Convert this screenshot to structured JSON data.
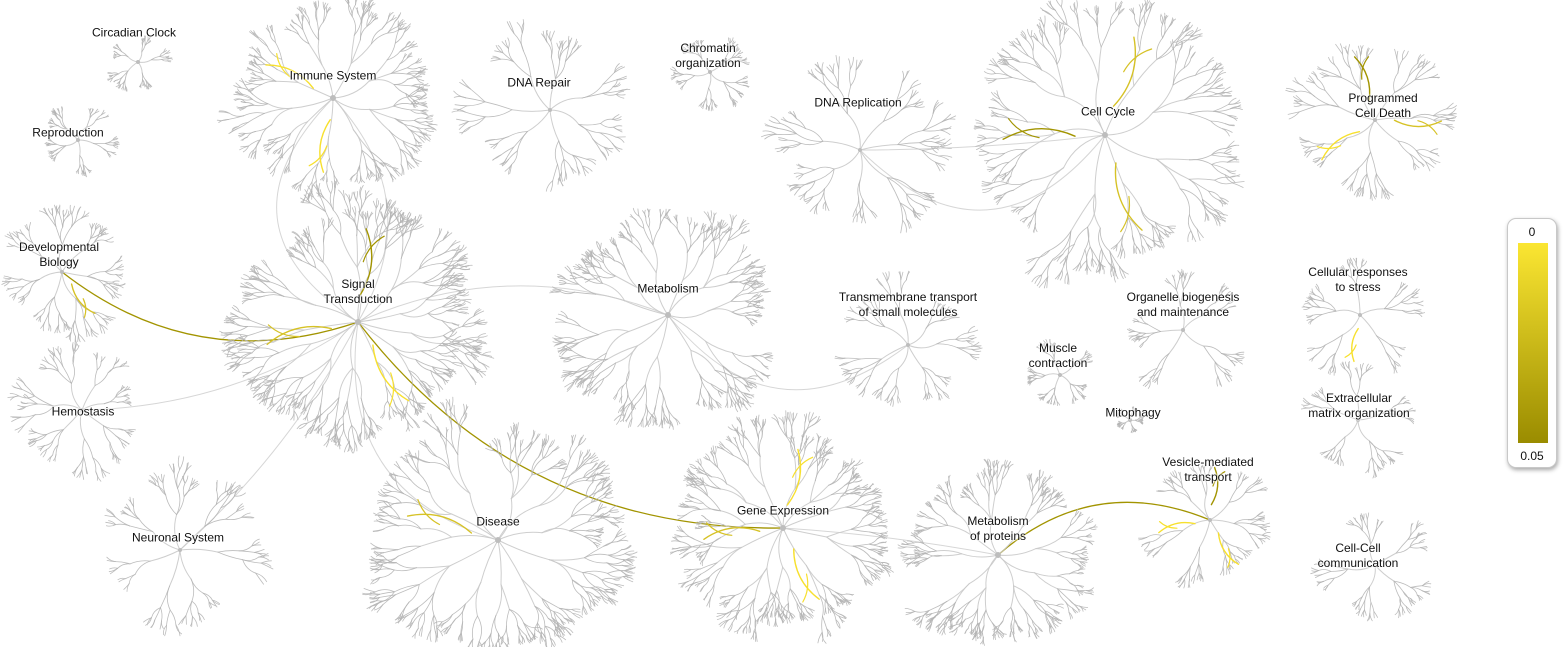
{
  "colors": {
    "tree": "#c9c9c9",
    "tree_dark": "#b5b5b5",
    "hit_high": "#f7e02e",
    "hit_mid": "#d6c226",
    "hit_low": "#a29400",
    "legend_top": "#fbe632",
    "legend_bottom": "#9a8c00"
  },
  "pathways": [
    {
      "id": "circadian-clock",
      "label": "Circadian Clock",
      "size": 1,
      "hits": []
    },
    {
      "id": "reproduction",
      "label": "Reproduction",
      "size": 1,
      "hits": []
    },
    {
      "id": "immune-system",
      "label": "Immune System",
      "size": 3,
      "hits": [
        "high",
        "high"
      ]
    },
    {
      "id": "developmental-biology",
      "label": "Developmental\nBiology",
      "size": 2,
      "hits": [
        "mid"
      ]
    },
    {
      "id": "signal-transduction",
      "label": "Signal\nTransduction",
      "size": 5,
      "hits": [
        "high",
        "mid",
        "low"
      ]
    },
    {
      "id": "hemostasis",
      "label": "Hemostasis",
      "size": 2,
      "hits": []
    },
    {
      "id": "neuronal-system",
      "label": "Neuronal System",
      "size": 2,
      "hits": []
    },
    {
      "id": "dna-repair",
      "label": "DNA Repair",
      "size": 2,
      "hits": []
    },
    {
      "id": "chromatin-organization",
      "label": "Chromatin\norganization",
      "size": 1,
      "hits": []
    },
    {
      "id": "metabolism",
      "label": "Metabolism",
      "size": 4,
      "hits": []
    },
    {
      "id": "disease",
      "label": "Disease",
      "size": 4,
      "hits": [
        "mid"
      ]
    },
    {
      "id": "gene-expression",
      "label": "Gene Expression",
      "size": 4,
      "hits": [
        "high",
        "mid",
        "high"
      ]
    },
    {
      "id": "dna-replication",
      "label": "DNA Replication",
      "size": 2,
      "hits": []
    },
    {
      "id": "transmembrane-transport",
      "label": "Transmembrane transport\nof small molecules",
      "size": 2,
      "hits": []
    },
    {
      "id": "cell-cycle",
      "label": "Cell Cycle",
      "size": 3,
      "hits": [
        "mid",
        "low",
        "mid"
      ]
    },
    {
      "id": "organelle-biogenesis",
      "label": "Organelle biogenesis\nand maintenance",
      "size": 1,
      "hits": []
    },
    {
      "id": "muscle-contraction",
      "label": "Muscle\ncontraction",
      "size": 1,
      "hits": []
    },
    {
      "id": "mitophagy",
      "label": "Mitophagy",
      "size": 1,
      "hits": []
    },
    {
      "id": "metabolism-of-proteins",
      "label": "Metabolism\nof proteins",
      "size": 3,
      "hits": []
    },
    {
      "id": "vesicle-mediated-transport",
      "label": "Vesicle-mediated\ntransport",
      "size": 2,
      "hits": [
        "high",
        "high",
        "low"
      ]
    },
    {
      "id": "programmed-cell-death",
      "label": "Programmed\nCell Death",
      "size": 2,
      "hits": [
        "high",
        "low",
        "mid"
      ]
    },
    {
      "id": "cellular-responses-to-stress",
      "label": "Cellular responses\nto stress",
      "size": 1,
      "hits": [
        "high"
      ]
    },
    {
      "id": "extracellular-matrix-organization",
      "label": "Extracellular\nmatrix organization",
      "size": 1,
      "hits": []
    },
    {
      "id": "cell-cell-communication",
      "label": "Cell-Cell\ncommunication",
      "size": 1,
      "hits": []
    }
  ],
  "links": [
    {
      "from": "signal-transduction",
      "to": "gene-expression",
      "hit": "low"
    },
    {
      "from": "signal-transduction",
      "to": "developmental-biology",
      "hit": "low"
    },
    {
      "from": "vesicle-mediated-transport",
      "to": "metabolism-of-proteins",
      "hit": "low"
    },
    {
      "from": "signal-transduction",
      "to": "metabolism",
      "hit": null
    },
    {
      "from": "signal-transduction",
      "to": "immune-system",
      "hit": null
    },
    {
      "from": "signal-transduction",
      "to": "hemostasis",
      "hit": null
    },
    {
      "from": "signal-transduction",
      "to": "disease",
      "hit": null
    },
    {
      "from": "signal-transduction",
      "to": "neuronal-system",
      "hit": null
    },
    {
      "from": "metabolism",
      "to": "transmembrane-transport",
      "hit": null
    },
    {
      "from": "gene-expression",
      "to": "metabolism-of-proteins",
      "hit": null
    },
    {
      "from": "dna-replication",
      "to": "cell-cycle",
      "hit": null
    },
    {
      "from": "dna-replication",
      "to": "cell-cycle",
      "hit": null
    },
    {
      "from": "immune-system",
      "to": "signal-transduction",
      "hit": null
    }
  ],
  "legend": {
    "top_label": "0",
    "bottom_label": "0.05"
  }
}
